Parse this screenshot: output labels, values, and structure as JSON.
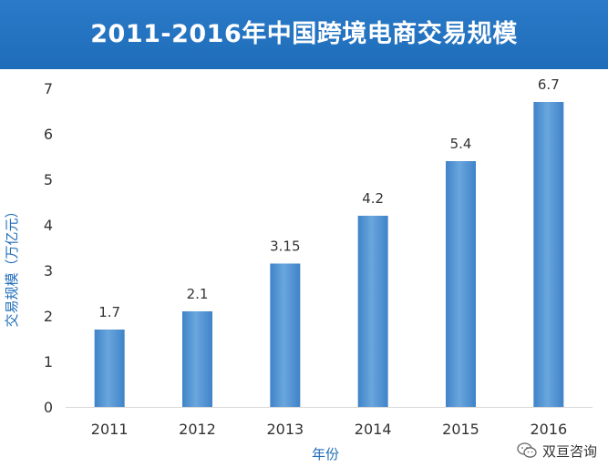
{
  "chart_data": {
    "type": "bar",
    "title": "2011-2016年中国跨境电商交易规模",
    "xlabel": "年份",
    "ylabel": "交易规模（万亿元）",
    "categories": [
      "2011",
      "2012",
      "2013",
      "2014",
      "2015",
      "2016"
    ],
    "values": [
      1.7,
      2.1,
      3.15,
      4.2,
      5.4,
      6.7
    ],
    "value_labels": [
      "1.7",
      "2.1",
      "3.15",
      "4.2",
      "5.4",
      "6.7"
    ],
    "ylim": [
      0,
      7
    ],
    "yticks": [
      0,
      1,
      2,
      3,
      4,
      5,
      6,
      7
    ],
    "grid": false,
    "bar_color": "#5b9bd5",
    "legend": "none"
  },
  "watermark": {
    "text": "双亘咨询",
    "icon": "wechat-icon"
  }
}
